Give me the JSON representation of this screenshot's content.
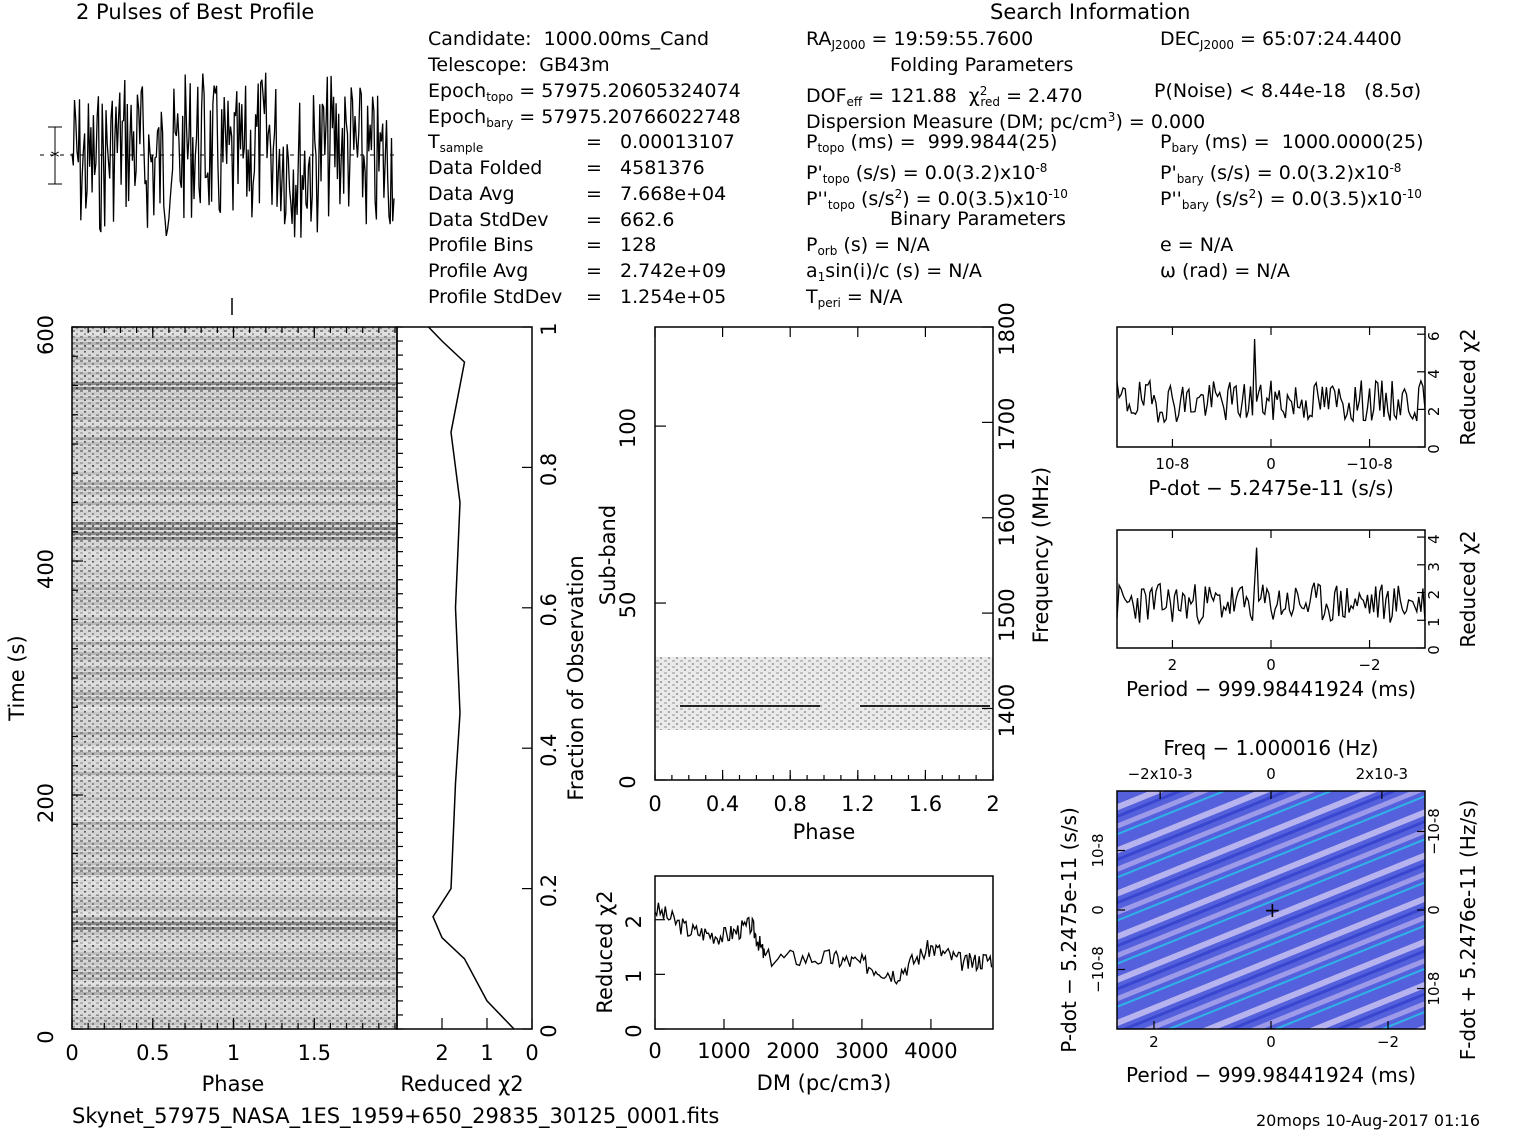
{
  "header": {
    "profile_title": "2 Pulses of Best Profile",
    "search_title": "Search Information",
    "folding_title": "Folding Parameters",
    "binary_title": "Binary Parameters"
  },
  "info_left": {
    "candidate": "Candidate:  1000.00ms_Cand",
    "telescope": "Telescope:  GB43m",
    "epoch_topo_label": "Epoch",
    "epoch_topo_sub": "topo",
    "epoch_topo_val": " = 57975.20605324074",
    "epoch_bary_label": "Epoch",
    "epoch_bary_sub": "bary",
    "epoch_bary_val": " = 57975.20766022748",
    "tsample_label": "T",
    "tsample_sub": "sample",
    "tsample_val": "=   0.00013107",
    "data_folded_label": "Data Folded",
    "data_folded_val": "=   4581376",
    "data_avg_label": "Data Avg",
    "data_avg_val": "=   7.668e+04",
    "data_std_label": "Data StdDev",
    "data_std_val": "=   662.6",
    "profile_bins_label": "Profile Bins",
    "profile_bins_val": "=   128",
    "profile_avg_label": "Profile Avg",
    "profile_avg_val": "=   2.742e+09",
    "profile_std_label": "Profile StdDev",
    "profile_std_val": "=   1.254e+05"
  },
  "info_mid": {
    "ra_label": "RA",
    "ra_sub": "J2000",
    "ra_val": " = 19:59:55.7600",
    "dof_label": "DOF",
    "dof_sub": "eff",
    "dof_val": " = 121.88  ",
    "chi_sym": "χ",
    "chi_sup": "2",
    "chi_sub": "red",
    "chi_val": " = 2.470",
    "dm_text": "Dispersion Measure (DM; pc/cm",
    "dm_sup": "3",
    "dm_val": ") = 0.000",
    "ptopo_label": "P",
    "ptopo_sub": "topo",
    "ptopo_val": " (ms) =  999.9844(25)",
    "pdtopo_label": "P'",
    "pdtopo_sub": "topo",
    "pdtopo_val": " (s/s) = 0.0(3.2)x10",
    "pdtopo_exp": "-8",
    "pddtopo_label": "P''",
    "pddtopo_sub": "topo",
    "pddtopo_val": " (s/s",
    "pddtopo_sup2": "2",
    "pddtopo_val2": ") = 0.0(3.5)x10",
    "pddtopo_exp": "-10",
    "porb_label": "P",
    "porb_sub": "orb",
    "porb_val": " (s) = N/A",
    "a1_label": "a",
    "a1_sub": "1",
    "a1_val": "sin(i)/c (s) = N/A",
    "tperi_label": "T",
    "tperi_sub": "peri",
    "tperi_val": " = N/A"
  },
  "info_right": {
    "dec_label": "DEC",
    "dec_sub": "J2000",
    "dec_val": " = 65:07:24.4400",
    "pnoise": "P(Noise) < 8.44e-18   (8.5σ)",
    "pbary_label": "P",
    "pbary_sub": "bary",
    "pbary_val": " (ms) =  1000.0000(25)",
    "pdbary_label": "P'",
    "pdbary_sub": "bary",
    "pdbary_val": " (s/s) = 0.0(3.2)x10",
    "pdbary_exp": "-8",
    "pddbary_label": "P''",
    "pddbary_sub": "bary",
    "pddbary_val": " (s/s",
    "pddbary_sup2": "2",
    "pddbary_val2": ") = 0.0(3.5)x10",
    "pddbary_exp": "-10",
    "e_val": "e = N/A",
    "omega_val": "ω (rad) = N/A"
  },
  "footer": {
    "filename": "Skynet_57975_NASA_1ES_1959+650_29835_30125_0001.fits",
    "stamp": "20mops 10-Aug-2017 01:16"
  },
  "colors": {
    "ink": "#000000",
    "map_blue": "#4a55d8",
    "map_light": "#b9b7ee",
    "map_cyan": "#2fb3e6"
  },
  "chart_data": [
    {
      "type": "line",
      "title": "2 Pulses of Best Profile",
      "xlim": [
        0,
        2
      ],
      "grid": false
    },
    {
      "type": "heatmap",
      "xlabel": "Phase",
      "ylabel": "Time (s)",
      "right_label": "Fraction of Observation",
      "xticks": [
        "0",
        "0.5",
        "1",
        "1.5"
      ],
      "yticks": [
        "0",
        "200",
        "400",
        "600"
      ],
      "rticks": [
        "0",
        "0.2",
        "0.4",
        "0.6",
        "0.8",
        "1"
      ],
      "xlim": [
        0,
        2
      ],
      "ylim": [
        0,
        600
      ],
      "rlim": [
        0,
        1
      ]
    },
    {
      "type": "line",
      "xlabel": "Reduced χ2",
      "xticks": [
        "2",
        "1",
        "0"
      ],
      "xlim": [
        3,
        0
      ],
      "points": [
        [
          0.4,
          0
        ],
        [
          1.0,
          0.04
        ],
        [
          1.5,
          0.1
        ],
        [
          2.0,
          0.13
        ],
        [
          2.2,
          0.16
        ],
        [
          1.8,
          0.2
        ],
        [
          1.7,
          0.35
        ],
        [
          1.6,
          0.45
        ],
        [
          1.7,
          0.6
        ],
        [
          1.6,
          0.75
        ],
        [
          1.8,
          0.85
        ],
        [
          1.5,
          0.95
        ],
        [
          2.0,
          0.98
        ],
        [
          2.3,
          1.0
        ]
      ]
    },
    {
      "type": "heatmap",
      "xlabel": "Phase",
      "ylabel": "Sub-band",
      "right_label": "Frequency (MHz)",
      "xticks": [
        "0",
        "0.4",
        "0.8",
        "1.2",
        "1.6",
        "2"
      ],
      "yticks": [
        "0",
        "50",
        "100"
      ],
      "rticks": [
        "1400",
        "1500",
        "1600",
        "1700",
        "1800"
      ],
      "xlim": [
        0,
        2
      ],
      "ylim": [
        0,
        128
      ],
      "rlim": [
        1325,
        1800
      ]
    },
    {
      "type": "line",
      "xlabel": "DM (pc/cm3)",
      "ylabel": "Reduced χ2",
      "xticks": [
        "0",
        "1000",
        "2000",
        "3000",
        "4000"
      ],
      "yticks": [
        "0",
        "1",
        "2"
      ],
      "xlim": [
        0,
        4900
      ],
      "ylim": [
        0,
        2.8
      ],
      "points": [
        [
          0,
          2.2
        ],
        [
          500,
          1.8
        ],
        [
          1000,
          1.7
        ],
        [
          1400,
          1.9
        ],
        [
          1600,
          1.3
        ],
        [
          2500,
          1.3
        ],
        [
          3000,
          1.2
        ],
        [
          3500,
          1.0
        ],
        [
          4000,
          1.5
        ],
        [
          4500,
          1.2
        ],
        [
          4900,
          1.3
        ]
      ]
    },
    {
      "type": "line",
      "xlabel": "P-dot − 5.2475e-11 (s/s)",
      "ylabel": "Reduced χ2",
      "xticks": [
        "10-8",
        "0",
        "−10-8"
      ],
      "yticks": [
        "0",
        "2",
        "4",
        "6"
      ],
      "ylim": [
        0,
        6.5
      ],
      "grid": false
    },
    {
      "type": "line",
      "xlabel": "Period − 999.98441924 (ms)",
      "ylabel": "Reduced χ2",
      "xticks": [
        "2",
        "0",
        "−2"
      ],
      "yticks": [
        "0",
        "1",
        "2",
        "3",
        "4"
      ],
      "ylim": [
        0,
        4.3
      ],
      "grid": false
    },
    {
      "type": "heatmap",
      "title": "Freq − 1.000016 (Hz)",
      "xlabel": "Period − 999.98441924 (ms)",
      "ylabel": "P-dot − 5.2475e-11 (s/s)",
      "right_label": "F-dot + 5.2476e-11 (Hz/s)",
      "xticks": [
        "2",
        "0",
        "−2"
      ],
      "top_xticks": [
        "−2x10-3",
        "0",
        "2x10-3"
      ],
      "yticks": [
        "10-8",
        "0",
        "−10-8"
      ],
      "rticks": [
        "−10-8",
        "0",
        "10-8"
      ]
    }
  ]
}
